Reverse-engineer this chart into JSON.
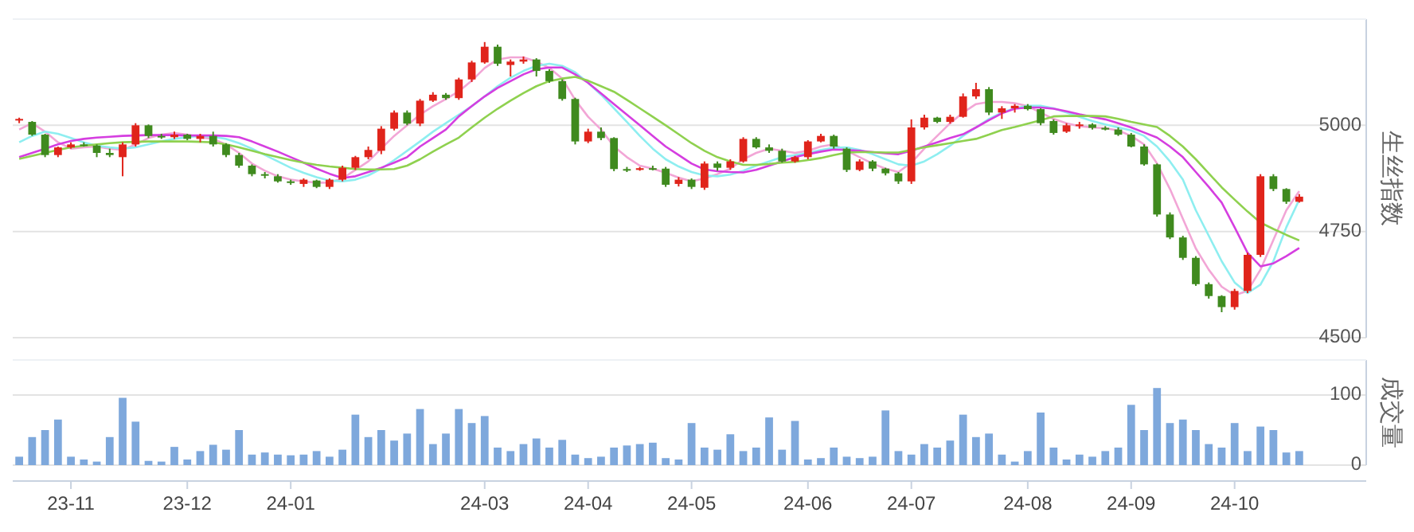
{
  "chart_data": [
    {
      "type": "candlestick",
      "ylabel": "生丝指数",
      "ylim": [
        4500,
        5250
      ],
      "yticks": [
        4500,
        4750,
        5000
      ],
      "grid": "y",
      "tick_labels": "y",
      "categories": [
        null,
        null,
        null,
        null,
        null,
        null,
        null,
        null,
        null,
        null,
        null,
        null,
        null,
        null,
        null,
        null,
        null,
        null,
        null,
        null,
        null,
        null,
        null,
        null,
        null,
        null,
        null,
        null,
        null,
        null,
        null,
        null,
        null,
        null,
        null,
        null,
        null,
        null,
        null,
        null,
        null,
        null,
        null,
        null,
        null,
        null,
        null,
        null,
        null,
        null,
        null,
        null,
        null,
        null,
        null,
        null,
        null,
        null,
        null,
        null,
        null,
        null,
        null,
        null,
        null,
        null,
        null,
        null,
        null,
        null,
        null,
        null,
        null,
        null,
        null,
        null,
        null,
        null,
        null,
        null,
        null,
        null,
        null,
        null,
        null,
        null,
        null,
        null,
        null,
        null,
        null,
        null,
        null,
        null,
        null,
        null,
        null,
        null,
        null,
        null
      ],
      "ohlc": [
        [
          5012,
          5018,
          5005,
          5015
        ],
        [
          5008,
          5010,
          4975,
          4978
        ],
        [
          4978,
          4980,
          4925,
          4930
        ],
        [
          4930,
          4950,
          4925,
          4948
        ],
        [
          4948,
          4960,
          4945,
          4955
        ],
        [
          4955,
          4960,
          4950,
          4952
        ],
        [
          4952,
          4955,
          4925,
          4935
        ],
        [
          4935,
          4945,
          4925,
          4930
        ],
        [
          4925,
          4960,
          4880,
          4955
        ],
        [
          4955,
          5005,
          4950,
          5000
        ],
        [
          5000,
          5002,
          4970,
          4975
        ],
        [
          4975,
          4980,
          4968,
          4972
        ],
        [
          4972,
          4985,
          4968,
          4978
        ],
        [
          4978,
          4980,
          4965,
          4968
        ],
        [
          4968,
          4980,
          4960,
          4975
        ],
        [
          4975,
          4985,
          4950,
          4955
        ],
        [
          4955,
          4958,
          4925,
          4930
        ],
        [
          4930,
          4935,
          4900,
          4905
        ],
        [
          4905,
          4908,
          4880,
          4885
        ],
        [
          4885,
          4890,
          4875,
          4882
        ],
        [
          4880,
          4885,
          4865,
          4868
        ],
        [
          4868,
          4872,
          4860,
          4865
        ],
        [
          4862,
          4875,
          4855,
          4872
        ],
        [
          4870,
          4872,
          4852,
          4855
        ],
        [
          4855,
          4875,
          4850,
          4872
        ],
        [
          4872,
          4905,
          4868,
          4900
        ],
        [
          4900,
          4928,
          4895,
          4925
        ],
        [
          4925,
          4950,
          4920,
          4942
        ],
        [
          4940,
          4998,
          4932,
          4992
        ],
        [
          4992,
          5035,
          4988,
          5030
        ],
        [
          5030,
          5035,
          5000,
          5004
        ],
        [
          5004,
          5062,
          4998,
          5058
        ],
        [
          5058,
          5078,
          5055,
          5072
        ],
        [
          5072,
          5076,
          5060,
          5064
        ],
        [
          5064,
          5112,
          5060,
          5108
        ],
        [
          5108,
          5152,
          5102,
          5148
        ],
        [
          5148,
          5196,
          5145,
          5185
        ],
        [
          5185,
          5190,
          5140,
          5145
        ],
        [
          5142,
          5155,
          5115,
          5150
        ],
        [
          5150,
          5162,
          5145,
          5155
        ],
        [
          5155,
          5158,
          5115,
          5128
        ],
        [
          5128,
          5132,
          5100,
          5104
        ],
        [
          5104,
          5108,
          5058,
          5062
        ],
        [
          5062,
          5065,
          4955,
          4962
        ],
        [
          4962,
          4992,
          4958,
          4985
        ],
        [
          4985,
          4995,
          4965,
          4970
        ],
        [
          4970,
          4972,
          4892,
          4897
        ],
        [
          4897,
          4902,
          4890,
          4895
        ],
        [
          4895,
          4902,
          4893,
          4899
        ],
        [
          4899,
          4905,
          4894,
          4898
        ],
        [
          4898,
          4902,
          4855,
          4860
        ],
        [
          4862,
          4878,
          4856,
          4872
        ],
        [
          4872,
          4875,
          4850,
          4855
        ],
        [
          4853,
          4915,
          4848,
          4910
        ],
        [
          4910,
          4915,
          4893,
          4900
        ],
        [
          4900,
          4920,
          4895,
          4915
        ],
        [
          4915,
          4972,
          4912,
          4968
        ],
        [
          4968,
          4972,
          4945,
          4948
        ],
        [
          4948,
          4955,
          4935,
          4940
        ],
        [
          4940,
          4945,
          4912,
          4915
        ],
        [
          4915,
          4928,
          4912,
          4925
        ],
        [
          4925,
          4965,
          4920,
          4962
        ],
        [
          4962,
          4980,
          4960,
          4975
        ],
        [
          4975,
          4978,
          4945,
          4950
        ],
        [
          4945,
          4948,
          4890,
          4895
        ],
        [
          4895,
          4920,
          4892,
          4915
        ],
        [
          4915,
          4918,
          4892,
          4898
        ],
        [
          4898,
          4900,
          4882,
          4887
        ],
        [
          4887,
          4890,
          4862,
          4868
        ],
        [
          4868,
          5014,
          4862,
          4995
        ],
        [
          4995,
          5025,
          4990,
          5018
        ],
        [
          5018,
          5020,
          5005,
          5008
        ],
        [
          5008,
          5025,
          5004,
          5020
        ],
        [
          5020,
          5075,
          5018,
          5068
        ],
        [
          5068,
          5100,
          5062,
          5085
        ],
        [
          5085,
          5090,
          5024,
          5030
        ],
        [
          5030,
          5045,
          5015,
          5040
        ],
        [
          5040,
          5050,
          5030,
          5046
        ],
        [
          5046,
          5050,
          5035,
          5038
        ],
        [
          5038,
          5040,
          5000,
          5005
        ],
        [
          5010,
          5014,
          4978,
          4982
        ],
        [
          4985,
          5005,
          4982,
          5000
        ],
        [
          5000,
          5008,
          4992,
          5002
        ],
        [
          5002,
          5005,
          4990,
          4994
        ],
        [
          4994,
          4998,
          4988,
          4990
        ],
        [
          4990,
          4995,
          4975,
          4978
        ],
        [
          4978,
          4982,
          4948,
          4950
        ],
        [
          4950,
          4955,
          4905,
          4908
        ],
        [
          4908,
          4910,
          4785,
          4790
        ],
        [
          4790,
          4795,
          4732,
          4736
        ],
        [
          4736,
          4740,
          4683,
          4688
        ],
        [
          4688,
          4692,
          4622,
          4626
        ],
        [
          4626,
          4630,
          4592,
          4598
        ],
        [
          4598,
          4600,
          4560,
          4572
        ],
        [
          4572,
          4615,
          4566,
          4610
        ],
        [
          4610,
          4700,
          4605,
          4695
        ],
        [
          4695,
          4885,
          4690,
          4880
        ],
        [
          4880,
          4885,
          4845,
          4850
        ],
        [
          4850,
          4852,
          4815,
          4820
        ],
        [
          4820,
          4838,
          4818,
          4832
        ]
      ],
      "series": [
        {
          "type": "line",
          "color": "#f2a6d6",
          "values": [
            4990,
            5005,
            4985,
            4960,
            4945,
            4948,
            4950,
            4945,
            4942,
            4955,
            4970,
            4978,
            4982,
            4978,
            4972,
            4968,
            4955,
            4935,
            4910,
            4893,
            4880,
            4872,
            4868,
            4865,
            4865,
            4875,
            4895,
            4915,
            4945,
            4975,
            5000,
            5025,
            5045,
            5062,
            5080,
            5105,
            5135,
            5155,
            5160,
            5160,
            5150,
            5135,
            5110,
            5060,
            5020,
            4990,
            4950,
            4925,
            4905,
            4898,
            4888,
            4877,
            4868,
            4875,
            4885,
            4898,
            4920,
            4935,
            4945,
            4940,
            4935,
            4940,
            4950,
            4955,
            4940,
            4925,
            4910,
            4898,
            4890,
            4912,
            4945,
            4975,
            5005,
            5030,
            5050,
            5055,
            5055,
            5052,
            5045,
            5030,
            5015,
            5005,
            4998,
            4995,
            4993,
            4988,
            4975,
            4955,
            4910,
            4850,
            4780,
            4710,
            4660,
            4620,
            4600,
            4610,
            4660,
            4730,
            4800,
            4845
          ]
        },
        {
          "type": "line",
          "color": "#8eeef0",
          "values": [
            4960,
            4975,
            4985,
            4980,
            4970,
            4960,
            4952,
            4948,
            4945,
            4948,
            4955,
            4962,
            4968,
            4972,
            4975,
            4973,
            4968,
            4958,
            4945,
            4930,
            4915,
            4900,
            4888,
            4878,
            4870,
            4868,
            4872,
            4882,
            4898,
            4918,
            4940,
            4962,
            4985,
            5005,
            5025,
            5045,
            5068,
            5092,
            5112,
            5128,
            5140,
            5145,
            5140,
            5125,
            5100,
            5072,
            5040,
            5008,
            4975,
            4945,
            4920,
            4903,
            4890,
            4882,
            4880,
            4884,
            4893,
            4905,
            4915,
            4925,
            4930,
            4935,
            4942,
            4947,
            4948,
            4942,
            4932,
            4920,
            4908,
            4905,
            4915,
            4932,
            4952,
            4975,
            4995,
            5015,
            5030,
            5040,
            5046,
            5046,
            5040,
            5030,
            5020,
            5010,
            5002,
            4995,
            4988,
            4975,
            4950,
            4915,
            4872,
            4800,
            4740,
            4680,
            4630,
            4605,
            4625,
            4680,
            4760,
            4825
          ]
        },
        {
          "type": "line",
          "color": "#d53ee0",
          "values": [
            4925,
            4935,
            4945,
            4955,
            4963,
            4968,
            4971,
            4973,
            4975,
            4976,
            4977,
            4977,
            4977,
            4976,
            4976,
            4976,
            4975,
            4972,
            4962,
            4950,
            4938,
            4925,
            4912,
            4898,
            4886,
            4876,
            4880,
            4890,
            4900,
            4912,
            4925,
            4950,
            4970,
            4990,
            5021,
            5045,
            5068,
            5088,
            5104,
            5120,
            5132,
            5136,
            5136,
            5120,
            5100,
            5075,
            5050,
            5025,
            5000,
            4975,
            4950,
            4930,
            4910,
            4896,
            4892,
            4890,
            4889,
            4895,
            4905,
            4915,
            4925,
            4932,
            4938,
            4943,
            4942,
            4940,
            4937,
            4934,
            4932,
            4940,
            4950,
            4960,
            4970,
            4979,
            4995,
            5012,
            5028,
            5039,
            5042,
            5042,
            5039,
            5033,
            5026,
            5020,
            5014,
            5005,
            4995,
            4983,
            4971,
            4950,
            4925,
            4890,
            4855,
            4818,
            4760,
            4700,
            4668,
            4675,
            4692,
            4711
          ]
        },
        {
          "type": "line",
          "color": "#8fd14f",
          "values": [
            4921,
            4928,
            4935,
            4942,
            4948,
            4952,
            4955,
            4958,
            4960,
            4961,
            4962,
            4962,
            4962,
            4962,
            4961,
            4960,
            4955,
            4948,
            4940,
            4932,
            4925,
            4918,
            4912,
            4907,
            4903,
            4900,
            4897,
            4896,
            4896,
            4897,
            4905,
            4920,
            4938,
            4955,
            4971,
            4995,
            5018,
            5039,
            5058,
            5076,
            5092,
            5104,
            5110,
            5114,
            5105,
            5092,
            5079,
            5060,
            5040,
            5020,
            5000,
            4979,
            4958,
            4940,
            4925,
            4915,
            4907,
            4907,
            4909,
            4912,
            4914,
            4918,
            4923,
            4930,
            4936,
            4937,
            4937,
            4936,
            4936,
            4942,
            4948,
            4953,
            4958,
            4963,
            4968,
            4978,
            4989,
            4996,
            5004,
            5012,
            5021,
            5022,
            5022,
            5022,
            5021,
            5015,
            5008,
            5002,
            4996,
            4975,
            4950,
            4920,
            4887,
            4854,
            4825,
            4797,
            4771,
            4756,
            4742,
            4729
          ]
        }
      ]
    },
    {
      "type": "bar",
      "ylabel": "成交量",
      "ylim": [
        0,
        150
      ],
      "yticks": [
        0,
        100
      ],
      "grid": "y",
      "color": "#7ea8dc",
      "categories": [
        null,
        null,
        null,
        null,
        "23-11",
        null,
        null,
        null,
        null,
        null,
        null,
        null,
        null,
        "23-12",
        null,
        null,
        null,
        null,
        null,
        null,
        null,
        "24-01",
        null,
        null,
        null,
        null,
        null,
        null,
        null,
        null,
        null,
        null,
        null,
        null,
        null,
        null,
        "24-03",
        null,
        null,
        null,
        null,
        null,
        null,
        null,
        "24-04",
        null,
        null,
        null,
        null,
        null,
        null,
        null,
        "24-05",
        null,
        null,
        null,
        null,
        null,
        null,
        null,
        null,
        "24-06",
        null,
        null,
        null,
        null,
        null,
        null,
        null,
        "24-07",
        null,
        null,
        null,
        null,
        null,
        null,
        null,
        null,
        "24-08",
        null,
        null,
        null,
        null,
        null,
        null,
        null,
        "24-09",
        null,
        null,
        null,
        null,
        null,
        null,
        null,
        "24-10",
        null,
        null,
        null,
        null,
        null
      ],
      "values": [
        12,
        40,
        50,
        65,
        12,
        8,
        5,
        40,
        96,
        62,
        6,
        5,
        26,
        8,
        20,
        29,
        22,
        50,
        15,
        18,
        15,
        14,
        15,
        20,
        12,
        22,
        72,
        40,
        50,
        35,
        45,
        80,
        30,
        45,
        80,
        60,
        70,
        25,
        20,
        30,
        38,
        25,
        36,
        15,
        10,
        12,
        25,
        28,
        30,
        32,
        10,
        8,
        60,
        25,
        22,
        44,
        20,
        25,
        68,
        22,
        63,
        8,
        10,
        25,
        12,
        10,
        12,
        78,
        20,
        15,
        30,
        25,
        35,
        72,
        40,
        45,
        15,
        5,
        20,
        75,
        25,
        8,
        15,
        12,
        20,
        25,
        86,
        50,
        110,
        60,
        65,
        50,
        30,
        25,
        60,
        20,
        55,
        50,
        18,
        20
      ]
    }
  ]
}
